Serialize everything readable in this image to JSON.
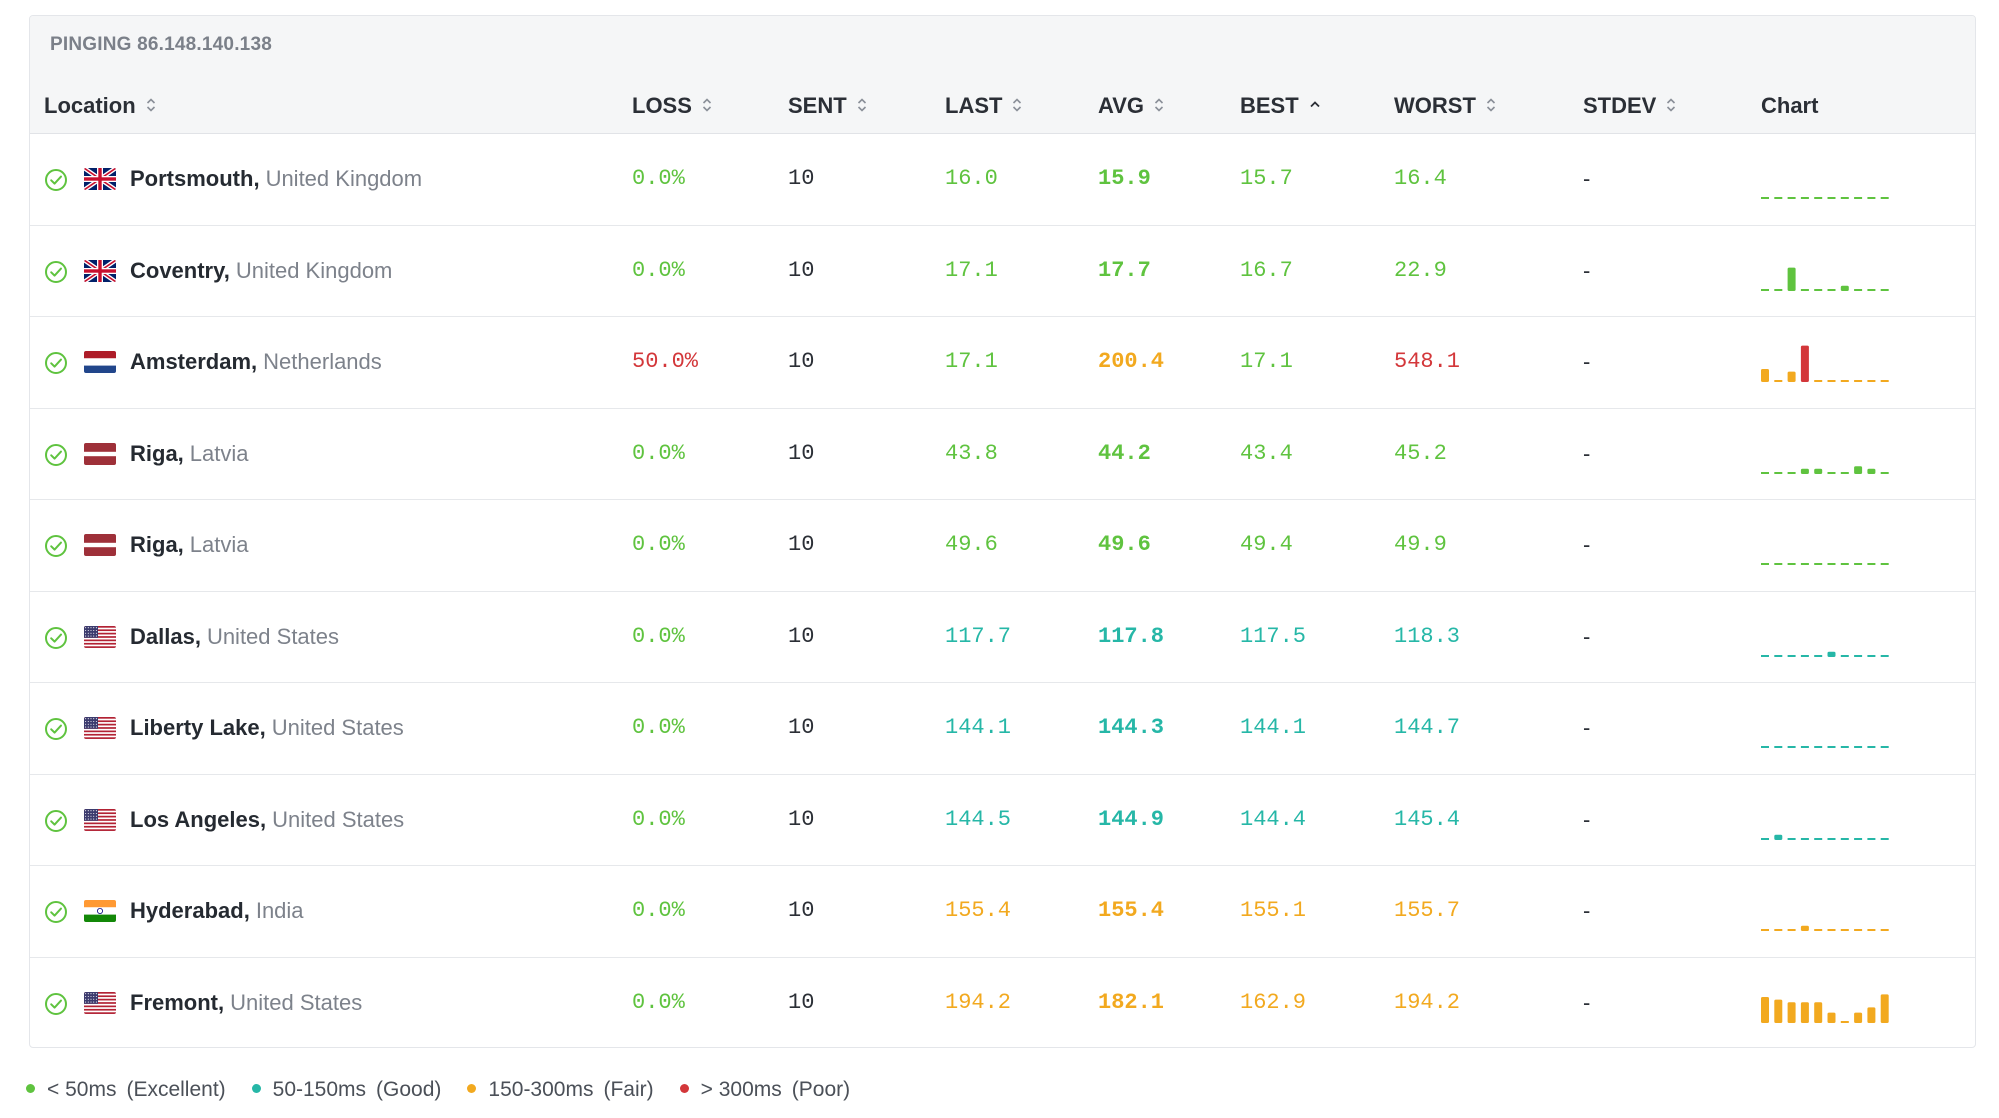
{
  "header": {
    "title": "PINGING 86.148.140.138",
    "columns": {
      "location": "Location",
      "loss": "LOSS",
      "sent": "SENT",
      "last": "LAST",
      "avg": "AVG",
      "best": "BEST",
      "worst": "WORST",
      "stdev": "STDEV",
      "chart": "Chart"
    }
  },
  "colors": {
    "excellent": "#5fc33f",
    "good": "#26b7a7",
    "fair": "#f2a91f",
    "poor": "#d3373a"
  },
  "rows": [
    {
      "city": "Portsmouth,",
      "country": "United Kingdom",
      "flag": "uk-flag",
      "loss": "0.0%",
      "sent": "10",
      "last": "16.0",
      "avg": "15.9",
      "best": "15.7",
      "worst": "16.4",
      "stdev": "-",
      "chart": [
        1,
        1,
        1,
        1,
        1,
        1,
        1,
        1,
        1,
        1
      ]
    },
    {
      "city": "Coventry,",
      "country": "United Kingdom",
      "flag": "uk-flag",
      "loss": "0.0%",
      "sent": "10",
      "last": "17.1",
      "avg": "17.7",
      "best": "16.7",
      "worst": "22.9",
      "stdev": "-",
      "chart": [
        1,
        1,
        9,
        1,
        1,
        1,
        2,
        1,
        1,
        1
      ]
    },
    {
      "city": "Amsterdam,",
      "country": "Netherlands",
      "flag": "nl-flag",
      "loss": "50.0%",
      "sent": "10",
      "last": "17.1",
      "avg": "200.4",
      "best": "17.1",
      "worst": "548.1",
      "stdev": "-",
      "chart": [
        5,
        1,
        4,
        14,
        1,
        1,
        1,
        1,
        1,
        1
      ]
    },
    {
      "city": "Riga,",
      "country": "Latvia",
      "flag": "lv-flag",
      "loss": "0.0%",
      "sent": "10",
      "last": "43.8",
      "avg": "44.2",
      "best": "43.4",
      "worst": "45.2",
      "stdev": "-",
      "chart": [
        1,
        1,
        1,
        2,
        2,
        1,
        1,
        3,
        2,
        1
      ]
    },
    {
      "city": "Riga,",
      "country": "Latvia",
      "flag": "lv-flag",
      "loss": "0.0%",
      "sent": "10",
      "last": "49.6",
      "avg": "49.6",
      "best": "49.4",
      "worst": "49.9",
      "stdev": "-",
      "chart": [
        1,
        1,
        1,
        1,
        1,
        1,
        1,
        1,
        1,
        1
      ]
    },
    {
      "city": "Dallas,",
      "country": "United States",
      "flag": "us-flag",
      "loss": "0.0%",
      "sent": "10",
      "last": "117.7",
      "avg": "117.8",
      "best": "117.5",
      "worst": "118.3",
      "stdev": "-",
      "chart": [
        1,
        1,
        1,
        1,
        1,
        2,
        1,
        1,
        1,
        1
      ]
    },
    {
      "city": "Liberty Lake,",
      "country": "United States",
      "flag": "us-flag",
      "loss": "0.0%",
      "sent": "10",
      "last": "144.1",
      "avg": "144.3",
      "best": "144.1",
      "worst": "144.7",
      "stdev": "-",
      "chart": [
        1,
        1,
        1,
        1,
        1,
        1,
        1,
        1,
        1,
        1
      ]
    },
    {
      "city": "Los Angeles,",
      "country": "United States",
      "flag": "us-flag",
      "loss": "0.0%",
      "sent": "10",
      "last": "144.5",
      "avg": "144.9",
      "best": "144.4",
      "worst": "145.4",
      "stdev": "-",
      "chart": [
        1,
        2,
        1,
        1,
        1,
        1,
        1,
        1,
        1,
        1
      ]
    },
    {
      "city": "Hyderabad,",
      "country": "India",
      "flag": "in-flag",
      "loss": "0.0%",
      "sent": "10",
      "last": "155.4",
      "avg": "155.4",
      "best": "155.1",
      "worst": "155.7",
      "stdev": "-",
      "chart": [
        1,
        1,
        1,
        2,
        1,
        1,
        1,
        1,
        1,
        1
      ]
    },
    {
      "city": "Fremont,",
      "country": "United States",
      "flag": "us-flag",
      "loss": "0.0%",
      "sent": "10",
      "last": "194.2",
      "avg": "182.1",
      "best": "162.9",
      "worst": "194.2",
      "stdev": "-",
      "chart": [
        10,
        9,
        8,
        8,
        8,
        4,
        1,
        4,
        6,
        11
      ]
    }
  ],
  "legend": [
    {
      "label": "< 50ms",
      "desc": "(Excellent)",
      "color": "#5fc33f"
    },
    {
      "label": "50-150ms",
      "desc": "(Good)",
      "color": "#26b7a7"
    },
    {
      "label": "150-300ms",
      "desc": "(Fair)",
      "color": "#f2a91f"
    },
    {
      "label": "> 300ms",
      "desc": "(Poor)",
      "color": "#d3373a"
    }
  ]
}
